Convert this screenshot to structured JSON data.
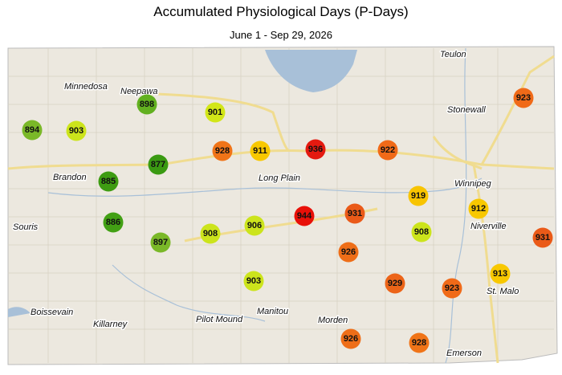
{
  "header": {
    "title": "Accumulated Physiological Days (P-Days)",
    "subtitle": "June 1 - Sep 29, 2026"
  },
  "stations": [
    {
      "value": 894,
      "color": "#7ab828"
    },
    {
      "value": 903,
      "color": "#cce41c"
    },
    {
      "value": 898,
      "color": "#62b020"
    },
    {
      "value": 901,
      "color": "#d2e618"
    },
    {
      "value": 928,
      "color": "#f07418"
    },
    {
      "value": 911,
      "color": "#f8c800"
    },
    {
      "value": 936,
      "color": "#e41a10"
    },
    {
      "value": 922,
      "color": "#f06a18"
    },
    {
      "value": 923,
      "color": "#f06a18"
    },
    {
      "value": 877,
      "color": "#3a9a12"
    },
    {
      "value": 885,
      "color": "#3e9c12"
    },
    {
      "value": 886,
      "color": "#42a014"
    },
    {
      "value": 897,
      "color": "#7ab828"
    },
    {
      "value": 908,
      "color": "#cce41c"
    },
    {
      "value": 906,
      "color": "#cce41c"
    },
    {
      "value": 944,
      "color": "#e81008"
    },
    {
      "value": 931,
      "color": "#ea5a18"
    },
    {
      "value": 919,
      "color": "#f8c400"
    },
    {
      "value": 912,
      "color": "#f8c800"
    },
    {
      "value": 908,
      "color": "#cce41c"
    },
    {
      "value": 931,
      "color": "#ea5a18"
    },
    {
      "value": 926,
      "color": "#ee6e18"
    },
    {
      "value": 929,
      "color": "#ec6418"
    },
    {
      "value": 923,
      "color": "#f06a18"
    },
    {
      "value": 913,
      "color": "#f8c800"
    },
    {
      "value": 903,
      "color": "#cce41c"
    },
    {
      "value": 926,
      "color": "#ee6e18"
    },
    {
      "value": 928,
      "color": "#f07418"
    }
  ],
  "places": [
    "Teulon",
    "Minnedosa",
    "Neepawa",
    "Stonewall",
    "Winnipeg",
    "Brandon",
    "Long Plain",
    "Souris",
    "Niverville",
    "St. Malo",
    "Boissevain",
    "Killarney",
    "Pilot Mound",
    "Manitou",
    "Morden",
    "Emerson"
  ]
}
